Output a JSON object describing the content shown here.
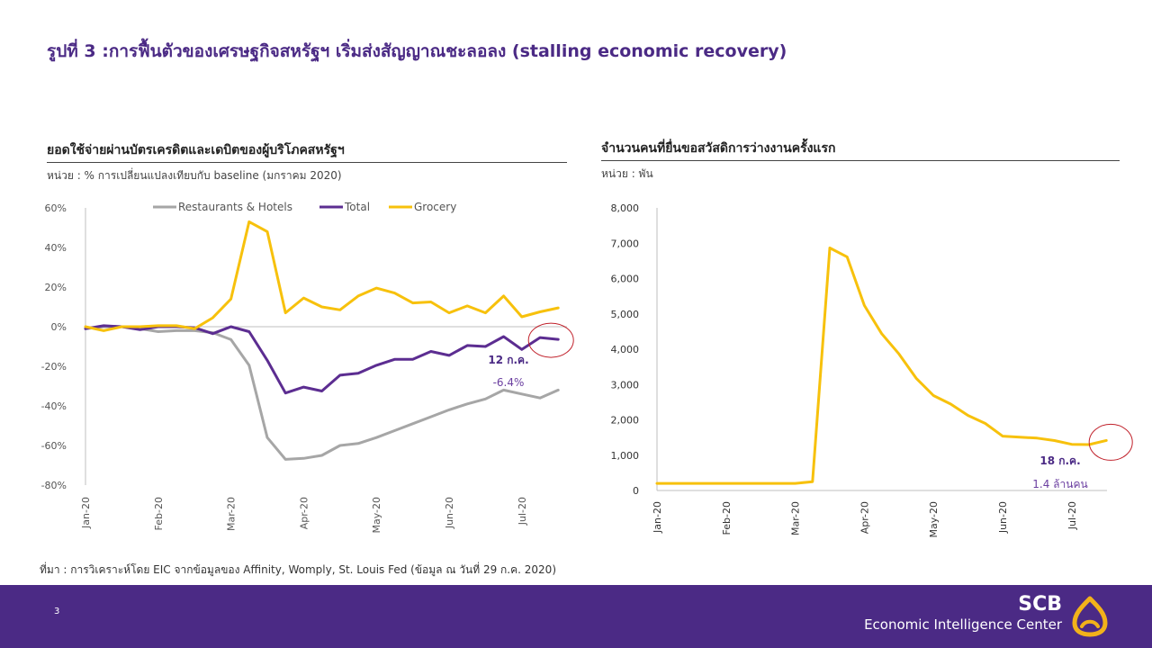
{
  "page": {
    "title": "รูปที่ 3 :การฟื้นตัวของเศรษฐกิจสหรัฐฯ เริ่มส่งสัญญาณชะลอลง (stalling economic recovery)",
    "source": "ที่มา : การวิเคราะห์โดย EIC จากข้อมูลของ Affinity, Womply, St. Louis Fed (ข้อมูล ณ วันที่ 29 ก.ค. 2020)",
    "page_number": "3",
    "brand_name": "SCB",
    "brand_sub": "Economic Intelligence Center"
  },
  "colors": {
    "purple": "#5c2d91",
    "yellow": "#f7c10c",
    "gray": "#a6a6a6",
    "highlight_circle": "#c0202a",
    "footer": "#4b2a85",
    "logo": "#f2b21a"
  },
  "chart_data": [
    {
      "type": "line",
      "title": "ยอดใช้จ่ายผ่านบัตรเครดิตและเดบิตของผู้บริโภคสหรัฐฯ",
      "unit_label": "หน่วย : % การเปลี่ยนแปลงเทียบกับ baseline (มกราคม 2020)",
      "y_ticks": [
        "60%",
        "40%",
        "20%",
        "0%",
        "-20%",
        "-40%",
        "-60%",
        "-80%"
      ],
      "ylim": [
        -80,
        60
      ],
      "x_ticks": [
        "Jan-20",
        "Feb-20",
        "Mar-20",
        "Apr-20",
        "May-20",
        "Jun-20",
        "Jul-20"
      ],
      "x_tick_index": [
        0,
        4,
        8,
        12,
        16,
        20,
        24
      ],
      "legend_position": "top",
      "series": [
        {
          "name": "Restaurants & Hotels",
          "color": "#a6a6a6",
          "values": [
            -1,
            0,
            0,
            -1,
            -2.5,
            -2,
            -2,
            -3,
            -6.5,
            -19.5,
            -56,
            -67,
            -66.5,
            -65,
            -60,
            -59,
            -56,
            -52.5,
            -49,
            -45.5,
            -42,
            -39,
            -36.5,
            -32,
            -34,
            -36,
            -32
          ]
        },
        {
          "name": "Total",
          "color": "#5c2d91",
          "values": [
            -1,
            0.5,
            0,
            -1.5,
            0,
            0,
            -0.5,
            -3.5,
            0,
            -2.5,
            -17,
            -33.5,
            -30.5,
            -32.5,
            -24.5,
            -23.5,
            -19.5,
            -16.5,
            -16.5,
            -12.5,
            -14.5,
            -9.5,
            -10,
            -5,
            -11.5,
            -5.5,
            -6.4
          ]
        },
        {
          "name": "Grocery",
          "color": "#f7c10c",
          "values": [
            0,
            -2,
            0,
            0,
            0.5,
            0.5,
            -1,
            4.5,
            14,
            53,
            48,
            7,
            14.5,
            10,
            8.5,
            15.5,
            19.5,
            17,
            12,
            12.5,
            7,
            10.5,
            7,
            15.5,
            5,
            7.5,
            9.5
          ]
        }
      ],
      "annotation": {
        "label": "12 ก.ค.",
        "value_label": "-6.4%"
      }
    },
    {
      "type": "line",
      "title": "จำนวนคนที่ยื่นขอสวัสดิการว่างงานครั้งแรก",
      "unit_label": "หน่วย : พัน",
      "y_ticks": [
        "8,000",
        "7,000",
        "6,000",
        "5,000",
        "4,000",
        "3,000",
        "2,000",
        "1,000",
        "0"
      ],
      "ylim": [
        0,
        8000
      ],
      "x_ticks": [
        "Jan-20",
        "Feb-20",
        "Mar-20",
        "Apr-20",
        "May-20",
        "Jun-20",
        "Jul-20"
      ],
      "x_tick_index": [
        0,
        4,
        8,
        12,
        16,
        20,
        24
      ],
      "series": [
        {
          "name": "",
          "color": "#f7c10c",
          "values": [
            200,
            200,
            200,
            200,
            200,
            200,
            200,
            200,
            200,
            250,
            6867,
            6615,
            5237,
            4442,
            3867,
            3176,
            2687,
            2446,
            2126,
            1897,
            1540,
            1508,
            1482,
            1413,
            1307,
            1300,
            1416
          ]
        }
      ],
      "annotation": {
        "label": "18 ก.ค.",
        "value_label": "1.4 ล้านคน"
      }
    }
  ]
}
